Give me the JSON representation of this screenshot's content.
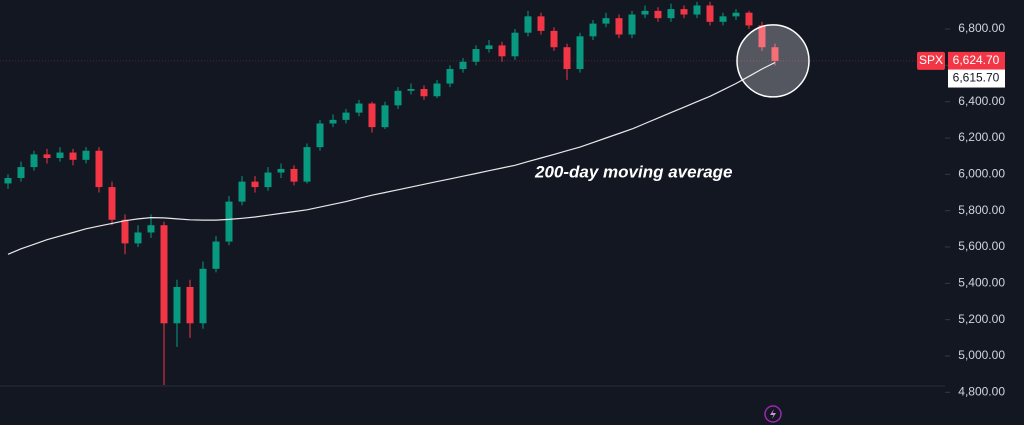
{
  "chart_data": {
    "type": "candlestick",
    "symbol": "SPX",
    "up_color": "#089981",
    "down_color": "#f23645",
    "open": [
      5950,
      5980,
      6040,
      6110,
      6090,
      6120,
      6080,
      6130,
      5930,
      5750,
      5620,
      5680,
      5720,
      5180,
      5380,
      5180,
      5480,
      5630,
      5850,
      5960,
      5930,
      6010,
      6030,
      5960,
      6150,
      6280,
      6300,
      6340,
      6390,
      6260,
      6380,
      6460,
      6470,
      6430,
      6500,
      6580,
      6620,
      6690,
      6710,
      6650,
      6780,
      6870,
      6790,
      6700,
      6580,
      6760,
      6830,
      6860,
      6770,
      6880,
      6900,
      6860,
      6910,
      6880,
      6930,
      6840,
      6870,
      6890,
      6820,
      6700
    ],
    "high": [
      6000,
      6070,
      6130,
      6140,
      6150,
      6140,
      6150,
      6150,
      5960,
      5780,
      5720,
      5780,
      5740,
      5420,
      5420,
      5520,
      5660,
      5880,
      5990,
      5990,
      6040,
      6060,
      6050,
      6170,
      6300,
      6330,
      6360,
      6410,
      6400,
      6400,
      6480,
      6500,
      6490,
      6520,
      6600,
      6640,
      6710,
      6740,
      6730,
      6800,
      6900,
      6890,
      6810,
      6720,
      6780,
      6850,
      6890,
      6880,
      6900,
      6930,
      6920,
      6940,
      6930,
      6950,
      6950,
      6890,
      6910,
      6900,
      6840,
      6720
    ],
    "low": [
      5920,
      5960,
      6020,
      6060,
      6070,
      6050,
      6060,
      5900,
      5720,
      5560,
      5600,
      5650,
      4840,
      5050,
      5100,
      5150,
      5460,
      5610,
      5830,
      5900,
      5910,
      5980,
      5940,
      5950,
      6130,
      6260,
      6280,
      6320,
      6230,
      6250,
      6360,
      6440,
      6410,
      6420,
      6480,
      6560,
      6600,
      6670,
      6620,
      6630,
      6760,
      6770,
      6680,
      6520,
      6560,
      6740,
      6810,
      6750,
      6750,
      6860,
      6840,
      6840,
      6860,
      6860,
      6820,
      6820,
      6850,
      6800,
      6680,
      6600
    ],
    "close": [
      5980,
      6040,
      6110,
      6090,
      6120,
      6080,
      6130,
      5930,
      5750,
      5620,
      5680,
      5720,
      5180,
      5380,
      5180,
      5480,
      5630,
      5850,
      5960,
      5930,
      6010,
      6030,
      5960,
      6150,
      6280,
      6300,
      6340,
      6390,
      6260,
      6380,
      6460,
      6470,
      6430,
      6500,
      6580,
      6620,
      6690,
      6710,
      6650,
      6780,
      6870,
      6790,
      6700,
      6580,
      6760,
      6830,
      6860,
      6770,
      6880,
      6900,
      6860,
      6910,
      6880,
      6930,
      6840,
      6870,
      6890,
      6820,
      6700,
      6624.7
    ],
    "close_label": "6,624.70",
    "moving_average": {
      "name": "200-day moving average",
      "color": "#e8e8e8",
      "values": [
        5560,
        5590,
        5615,
        5640,
        5660,
        5680,
        5700,
        5715,
        5730,
        5745,
        5755,
        5762,
        5760,
        5755,
        5750,
        5748,
        5748,
        5752,
        5758,
        5765,
        5775,
        5785,
        5795,
        5805,
        5820,
        5835,
        5850,
        5868,
        5885,
        5900,
        5915,
        5930,
        5945,
        5960,
        5975,
        5990,
        6005,
        6020,
        6035,
        6050,
        6070,
        6090,
        6110,
        6130,
        6150,
        6175,
        6200,
        6225,
        6250,
        6280,
        6310,
        6340,
        6370,
        6400,
        6430,
        6465,
        6500,
        6540,
        6580,
        6615.7
      ],
      "last_label": "6,615.70"
    },
    "ylim": [
      4620,
      6960
    ],
    "yticks": [
      {
        "value": 4800,
        "label": "4,800.00"
      },
      {
        "value": 5000,
        "label": "5,000.00"
      },
      {
        "value": 5200,
        "label": "5,200.00"
      },
      {
        "value": 5400,
        "label": "5,400.00"
      },
      {
        "value": 5600,
        "label": "5,600.00"
      },
      {
        "value": 5800,
        "label": "5,800.00"
      },
      {
        "value": 6000,
        "label": "6,000.00"
      },
      {
        "value": 6200,
        "label": "6,200.00"
      },
      {
        "value": 6400,
        "label": "6,400.00"
      },
      {
        "value": 6600,
        "label": "6,600.00"
      },
      {
        "value": 6800,
        "label": "6,800.00"
      }
    ]
  }
}
